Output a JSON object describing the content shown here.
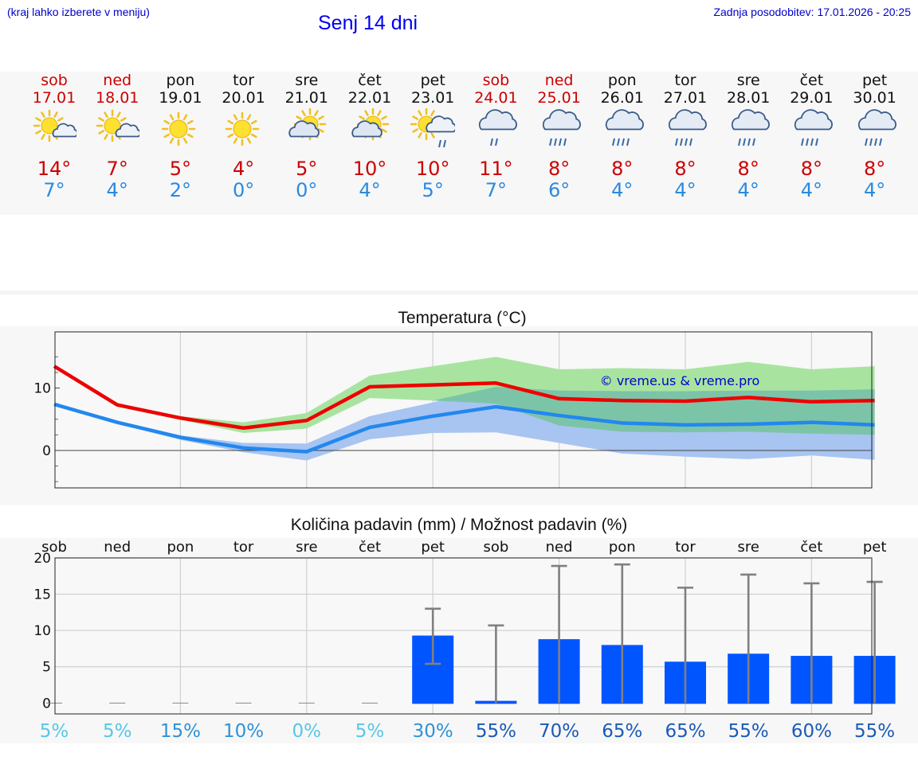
{
  "header": {
    "hint": "(kraj lahko izberete v meniju)",
    "title": "Senj 14 dni",
    "updated": "Zadnja posodobitev: 17.01.2026 - 20:25"
  },
  "colors": {
    "weekend": "#cc0000",
    "weekday": "#111111",
    "max_line": "#ee0000",
    "min_line": "#2288ee",
    "max_band": "#a8e4a0",
    "min_band": "#a8c4f0",
    "overlap_band": "#7cc4a8",
    "bar": "#0055ff",
    "error_bar": "#808080",
    "watermark": "#0000cc"
  },
  "days": [
    {
      "name": "sob",
      "date": "17.01",
      "weekend": true,
      "icon": "sun-partly-cloudy-icon",
      "tmax": "14°",
      "tmin": "7°"
    },
    {
      "name": "ned",
      "date": "18.01",
      "weekend": true,
      "icon": "sun-partly-cloudy-icon",
      "tmax": "7°",
      "tmin": "4°"
    },
    {
      "name": "pon",
      "date": "19.01",
      "weekend": false,
      "icon": "sun-icon",
      "tmax": "5°",
      "tmin": "2°"
    },
    {
      "name": "tor",
      "date": "20.01",
      "weekend": false,
      "icon": "sun-icon",
      "tmax": "4°",
      "tmin": "0°"
    },
    {
      "name": "sre",
      "date": "21.01",
      "weekend": false,
      "icon": "sun-behind-cloud-icon",
      "tmax": "5°",
      "tmin": "0°"
    },
    {
      "name": "čet",
      "date": "22.01",
      "weekend": false,
      "icon": "sun-behind-cloud-icon",
      "tmax": "10°",
      "tmin": "4°"
    },
    {
      "name": "pet",
      "date": "23.01",
      "weekend": false,
      "icon": "sun-cloud-rain-icon",
      "tmax": "10°",
      "tmin": "5°"
    },
    {
      "name": "sob",
      "date": "24.01",
      "weekend": true,
      "icon": "cloud-rain-icon",
      "tmax": "11°",
      "tmin": "7°"
    },
    {
      "name": "ned",
      "date": "25.01",
      "weekend": true,
      "icon": "cloud-heavy-rain-icon",
      "tmax": "8°",
      "tmin": "6°"
    },
    {
      "name": "pon",
      "date": "26.01",
      "weekend": false,
      "icon": "cloud-heavy-rain-icon",
      "tmax": "8°",
      "tmin": "4°"
    },
    {
      "name": "tor",
      "date": "27.01",
      "weekend": false,
      "icon": "cloud-heavy-rain-icon",
      "tmax": "8°",
      "tmin": "4°"
    },
    {
      "name": "sre",
      "date": "28.01",
      "weekend": false,
      "icon": "cloud-heavy-rain-icon",
      "tmax": "8°",
      "tmin": "4°"
    },
    {
      "name": "čet",
      "date": "29.01",
      "weekend": false,
      "icon": "cloud-heavy-rain-icon",
      "tmax": "8°",
      "tmin": "4°"
    },
    {
      "name": "pet",
      "date": "30.01",
      "weekend": false,
      "icon": "cloud-heavy-rain-icon",
      "tmax": "8°",
      "tmin": "4°"
    }
  ],
  "chart_data": [
    {
      "type": "line",
      "title": "Temperatura (°C)",
      "watermark": "© vreme.us & vreme.pro",
      "x": [
        0,
        1,
        2,
        3,
        4,
        5,
        6,
        7,
        8,
        9,
        10,
        11,
        12,
        13
      ],
      "ylim": [
        -6,
        19
      ],
      "yticks": [
        0,
        10
      ],
      "ytick_labels": [
        "0",
        "10"
      ],
      "series": [
        {
          "name": "max",
          "values": [
            13.5,
            7.3,
            5.2,
            3.6,
            4.8,
            10.2,
            10.5,
            10.8,
            8.3,
            8.0,
            7.9,
            8.5,
            7.8,
            8.0
          ],
          "band_low": [
            13.5,
            7.0,
            4.9,
            2.8,
            3.5,
            8.4,
            8.0,
            7.5,
            4.0,
            3.0,
            2.9,
            3.0,
            2.7,
            2.5
          ],
          "band_high": [
            13.5,
            7.5,
            5.5,
            4.5,
            6.0,
            12.0,
            13.5,
            15.0,
            13.0,
            13.2,
            13.0,
            14.2,
            13.0,
            13.5
          ]
        },
        {
          "name": "min",
          "values": [
            7.4,
            4.5,
            2.1,
            0.4,
            -0.2,
            3.7,
            5.5,
            7.0,
            5.6,
            4.4,
            4.1,
            4.2,
            4.5,
            4.1
          ],
          "band_low": [
            7.4,
            4.3,
            1.7,
            -0.3,
            -1.6,
            1.8,
            2.8,
            2.9,
            1.2,
            -0.5,
            -1.0,
            -1.4,
            -0.8,
            -1.5
          ],
          "band_high": [
            7.4,
            4.7,
            2.4,
            1.2,
            1.1,
            5.5,
            7.7,
            10.2,
            9.6,
            9.5,
            9.5,
            9.6,
            9.6,
            9.8
          ]
        }
      ]
    },
    {
      "type": "bar",
      "title": "Količina padavin (mm) / Možnost padavin (%)",
      "categories": [
        "sob",
        "ned",
        "pon",
        "tor",
        "sre",
        "čet",
        "pet",
        "sob",
        "ned",
        "pon",
        "tor",
        "sre",
        "čet",
        "pet"
      ],
      "values": [
        0,
        0,
        0,
        0,
        0,
        0,
        9.3,
        0.3,
        8.8,
        8.0,
        5.7,
        6.8,
        6.5,
        6.5
      ],
      "error_low": [
        0,
        0,
        0,
        0,
        0,
        0,
        5.4,
        0,
        0,
        0,
        0,
        0,
        0,
        0
      ],
      "error_high": [
        0,
        0,
        0,
        0,
        0,
        0,
        13.0,
        10.7,
        18.9,
        19.1,
        15.9,
        17.7,
        16.5,
        16.7
      ],
      "probability": [
        "5%",
        "5%",
        "15%",
        "10%",
        "0%",
        "5%",
        "30%",
        "55%",
        "70%",
        "65%",
        "65%",
        "55%",
        "60%",
        "55%"
      ],
      "ylim": [
        -1.5,
        20
      ],
      "yticks": [
        0,
        5,
        10,
        15,
        20
      ],
      "ytick_labels": [
        "0",
        "5",
        "10",
        "15",
        "20"
      ]
    }
  ]
}
